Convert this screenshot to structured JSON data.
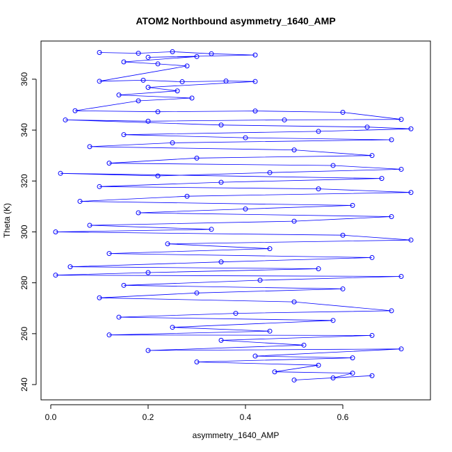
{
  "chart_data": {
    "type": "scatter",
    "title": "ATOM2 Northbound asymmetry_1640_AMP",
    "xlabel": "asymmetry_1640_AMP",
    "ylabel": "Theta (K)",
    "xlim": [
      -0.02,
      0.78
    ],
    "ylim": [
      234,
      375
    ],
    "xticks": [
      0.0,
      0.2,
      0.4,
      0.6
    ],
    "xtick_labels": [
      "0.0",
      "0.2",
      "0.4",
      "0.6"
    ],
    "yticks": [
      240,
      260,
      280,
      300,
      320,
      340,
      360
    ],
    "ytick_labels": [
      "240",
      "260",
      "280",
      "300",
      "320",
      "340",
      "360"
    ],
    "grid": false,
    "marker": "open-circle",
    "line_connected": true,
    "series_color": "#0000ff",
    "series": [
      {
        "points": [
          [
            0.1,
            370.5
          ],
          [
            0.18,
            370.2
          ],
          [
            0.25,
            370.8
          ],
          [
            0.33,
            370.0
          ],
          [
            0.42,
            369.5
          ],
          [
            0.2,
            368.6
          ],
          [
            0.3,
            368.9
          ],
          [
            0.15,
            366.8
          ],
          [
            0.22,
            366.0
          ],
          [
            0.28,
            365.2
          ],
          [
            0.1,
            359.2
          ],
          [
            0.19,
            359.6
          ],
          [
            0.27,
            359.0
          ],
          [
            0.36,
            359.3
          ],
          [
            0.42,
            359.1
          ],
          [
            0.2,
            356.8
          ],
          [
            0.26,
            355.4
          ],
          [
            0.14,
            353.8
          ],
          [
            0.29,
            352.6
          ],
          [
            0.18,
            351.5
          ],
          [
            0.05,
            347.6
          ],
          [
            0.22,
            347.2
          ],
          [
            0.42,
            347.5
          ],
          [
            0.6,
            347.0
          ],
          [
            0.72,
            344.2
          ],
          [
            0.48,
            344.0
          ],
          [
            0.2,
            343.5
          ],
          [
            0.03,
            344.0
          ],
          [
            0.35,
            342.0
          ],
          [
            0.65,
            341.2
          ],
          [
            0.74,
            340.5
          ],
          [
            0.55,
            339.5
          ],
          [
            0.15,
            338.2
          ],
          [
            0.4,
            337.0
          ],
          [
            0.7,
            336.2
          ],
          [
            0.25,
            335.0
          ],
          [
            0.08,
            333.5
          ],
          [
            0.5,
            332.2
          ],
          [
            0.66,
            330.0
          ],
          [
            0.3,
            329.0
          ],
          [
            0.12,
            327.0
          ],
          [
            0.58,
            326.1
          ],
          [
            0.72,
            324.6
          ],
          [
            0.45,
            323.3
          ],
          [
            0.22,
            322.0
          ],
          [
            0.02,
            323.0
          ],
          [
            0.68,
            321.0
          ],
          [
            0.35,
            319.5
          ],
          [
            0.1,
            317.8
          ],
          [
            0.55,
            316.9
          ],
          [
            0.74,
            315.5
          ],
          [
            0.28,
            314.0
          ],
          [
            0.06,
            312.0
          ],
          [
            0.62,
            310.4
          ],
          [
            0.4,
            309.0
          ],
          [
            0.18,
            307.5
          ],
          [
            0.7,
            306.0
          ],
          [
            0.5,
            304.2
          ],
          [
            0.08,
            302.6
          ],
          [
            0.33,
            301.0
          ],
          [
            0.01,
            300.0
          ],
          [
            0.6,
            298.7
          ],
          [
            0.74,
            296.8
          ],
          [
            0.24,
            295.3
          ],
          [
            0.45,
            293.4
          ],
          [
            0.12,
            291.5
          ],
          [
            0.66,
            289.9
          ],
          [
            0.35,
            288.2
          ],
          [
            0.04,
            286.3
          ],
          [
            0.55,
            285.5
          ],
          [
            0.2,
            284.0
          ],
          [
            0.01,
            283.0
          ],
          [
            0.72,
            282.5
          ],
          [
            0.43,
            281.0
          ],
          [
            0.15,
            279.0
          ],
          [
            0.6,
            277.6
          ],
          [
            0.3,
            276.0
          ],
          [
            0.1,
            274.1
          ],
          [
            0.5,
            272.5
          ],
          [
            0.7,
            269.0
          ],
          [
            0.38,
            268.0
          ],
          [
            0.14,
            266.5
          ],
          [
            0.58,
            265.2
          ],
          [
            0.25,
            262.5
          ],
          [
            0.45,
            261.0
          ],
          [
            0.12,
            259.5
          ],
          [
            0.66,
            259.3
          ],
          [
            0.35,
            257.4
          ],
          [
            0.52,
            255.5
          ],
          [
            0.2,
            253.4
          ],
          [
            0.72,
            254.0
          ],
          [
            0.42,
            251.2
          ],
          [
            0.62,
            250.5
          ],
          [
            0.3,
            248.9
          ],
          [
            0.55,
            247.6
          ],
          [
            0.46,
            245.0
          ],
          [
            0.62,
            244.5
          ],
          [
            0.58,
            242.6
          ],
          [
            0.66,
            243.5
          ],
          [
            0.5,
            241.8
          ]
        ]
      }
    ]
  }
}
